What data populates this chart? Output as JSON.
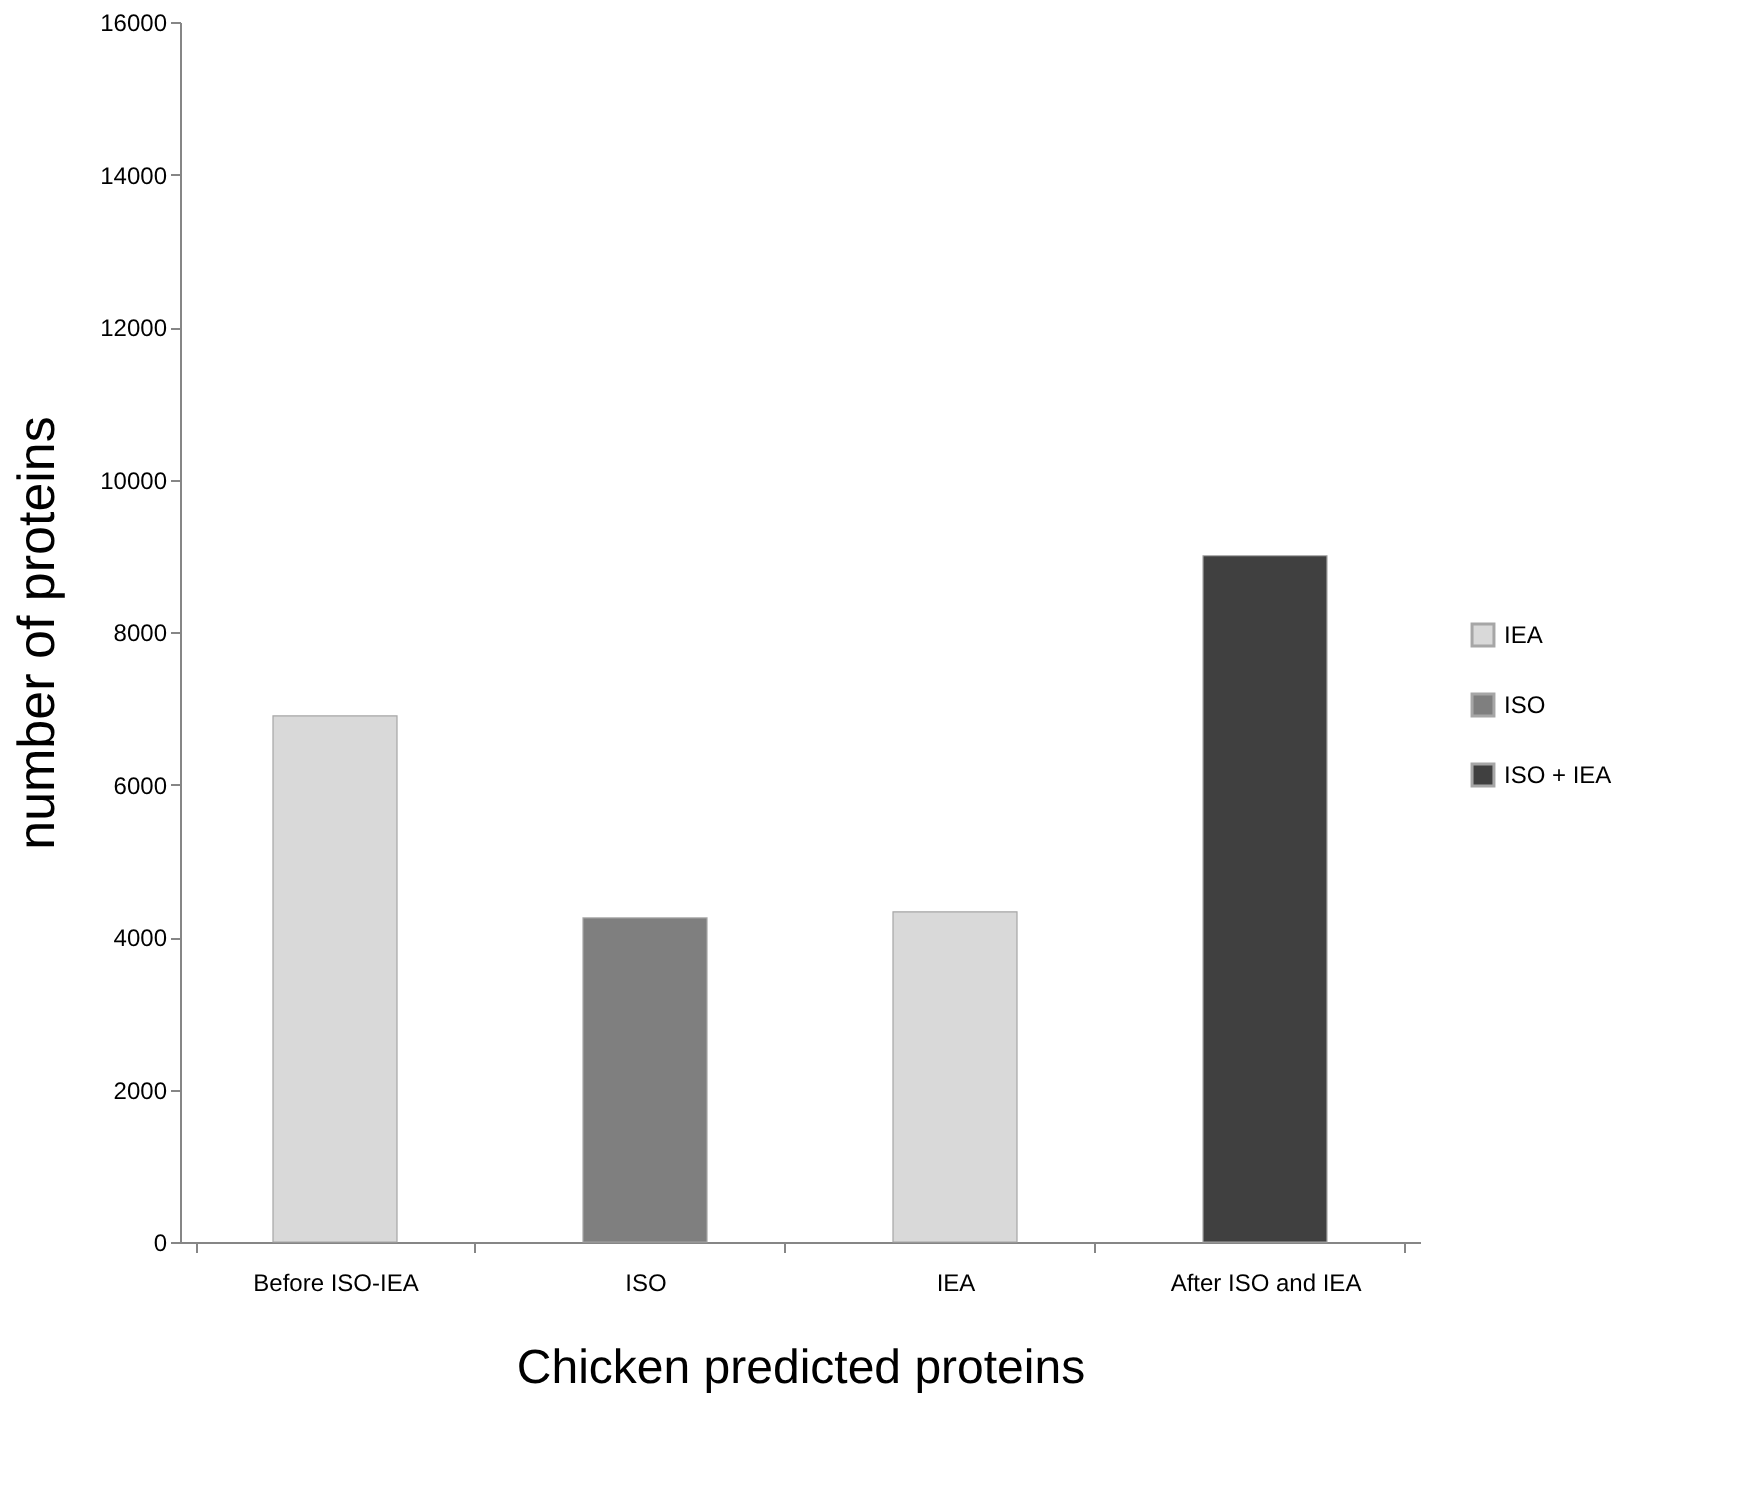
{
  "chart_data": {
    "type": "bar",
    "xlabel": "Chicken predicted proteins",
    "ylabel": "number of proteins",
    "categories": [
      "Before ISO-IEA",
      "ISO",
      "IEA",
      "After ISO and IEA"
    ],
    "series": [
      {
        "name": "IEA",
        "color": "#d9d9d9",
        "values": [
          6900,
          null,
          4330,
          null
        ]
      },
      {
        "name": "ISO",
        "color": "#7f7f7f",
        "values": [
          null,
          4250,
          null,
          null
        ]
      },
      {
        "name": "ISO + IEA",
        "color": "#404040",
        "values": [
          null,
          null,
          null,
          9000
        ]
      }
    ],
    "ylim": [
      0,
      16000
    ],
    "yticks": [
      0,
      2000,
      4000,
      6000,
      8000,
      10000,
      12000,
      14000,
      16000
    ],
    "grid": false,
    "legend": "right"
  }
}
